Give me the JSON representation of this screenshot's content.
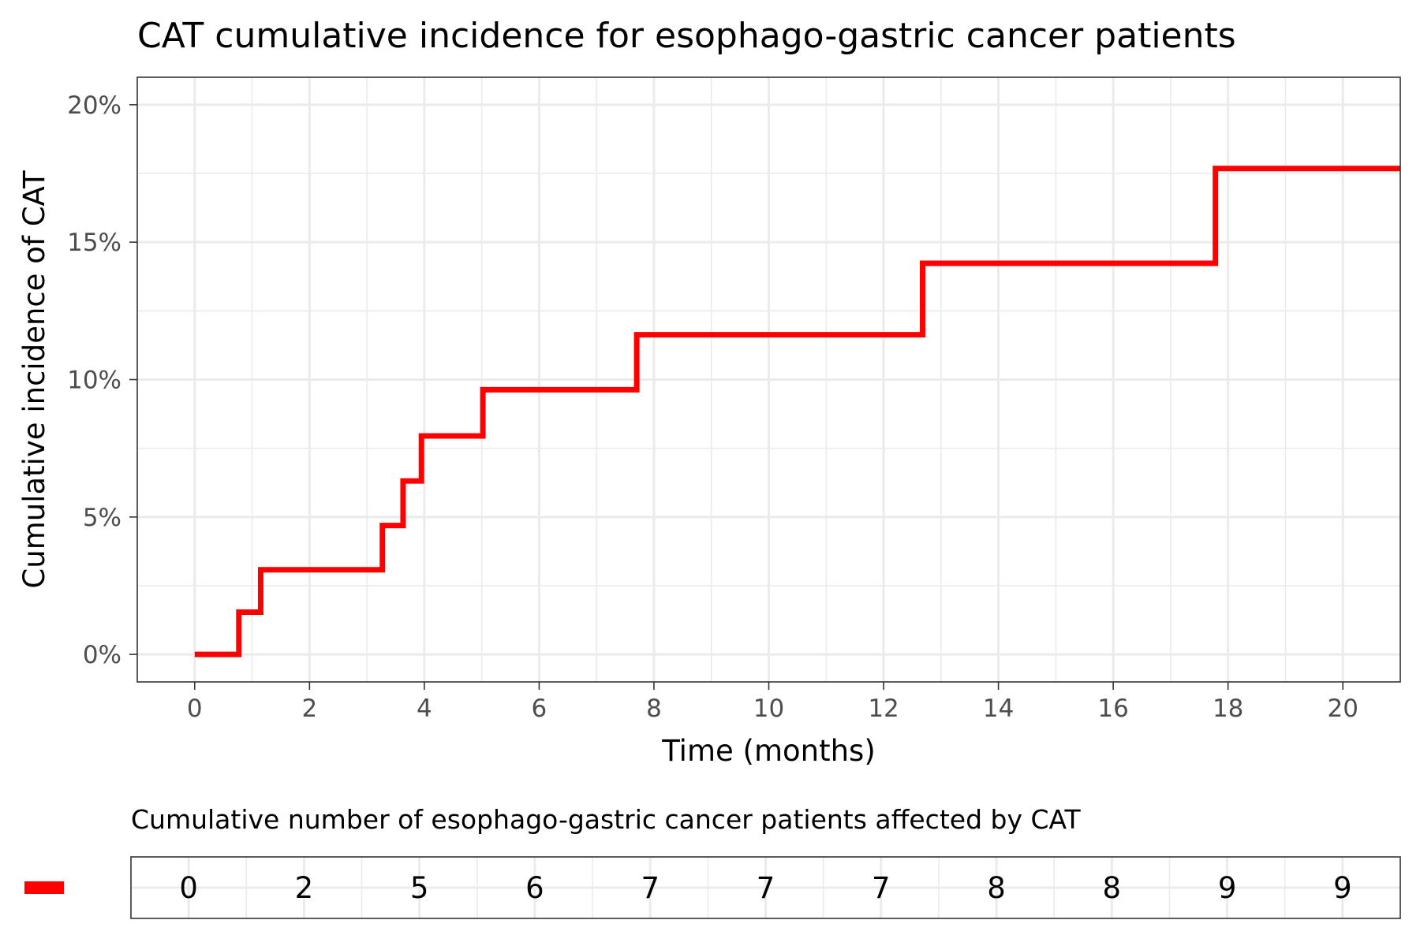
{
  "chart_data": {
    "type": "line",
    "title": "CAT cumulative incidence for esophago-gastric cancer patients",
    "xlabel": "Time (months)",
    "ylabel": "Cumulative incidence of CAT",
    "xlim": [
      -1,
      21
    ],
    "ylim": [
      -1,
      21
    ],
    "x_ticks": [
      0,
      2,
      4,
      6,
      8,
      10,
      12,
      14,
      16,
      18,
      20
    ],
    "x_tick_labels": [
      "0",
      "2",
      "4",
      "6",
      "8",
      "10",
      "12",
      "14",
      "16",
      "18",
      "20"
    ],
    "y_ticks": [
      0,
      5,
      10,
      15,
      20
    ],
    "y_tick_labels": [
      "0%",
      "5%",
      "10%",
      "15%",
      "20%"
    ],
    "grid": true,
    "line_color": "#ff0000",
    "series": [
      {
        "step": true,
        "x": [
          0,
          0.77,
          1.15,
          3.27,
          3.63,
          3.95,
          5.02,
          7.7,
          12.68,
          17.78,
          21
        ],
        "y": [
          0,
          1.54,
          3.08,
          4.69,
          6.31,
          7.95,
          9.63,
          11.63,
          14.23,
          17.68,
          17.68
        ]
      }
    ],
    "risk_table": {
      "title": "Cumulative number of esophago-gastric cancer patients affected by CAT",
      "x": [
        0,
        2,
        4,
        6,
        8,
        10,
        12,
        14,
        16,
        18,
        20
      ],
      "values": [
        "0",
        "2",
        "5",
        "6",
        "7",
        "7",
        "7",
        "8",
        "8",
        "9",
        "9"
      ]
    }
  }
}
